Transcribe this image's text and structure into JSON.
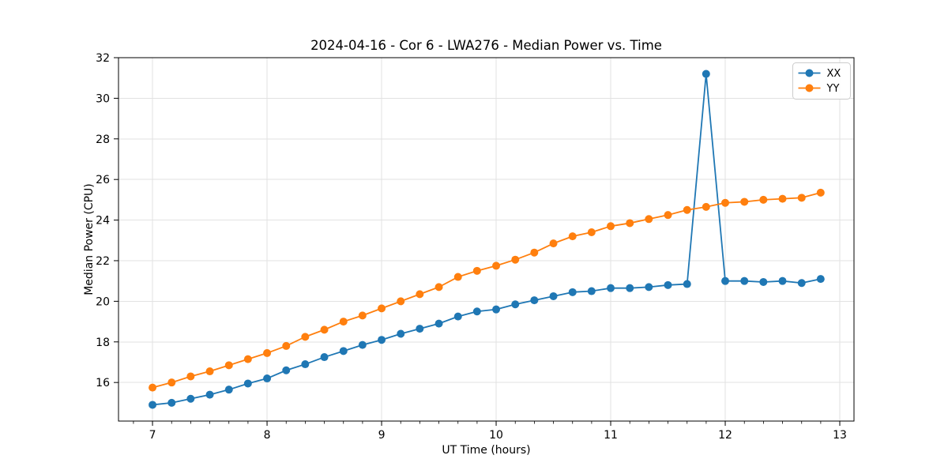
{
  "chart_data": {
    "type": "line",
    "title": "2024-04-16 - Cor 6 - LWA276 - Median Power vs. Time",
    "xlabel": "UT Time (hours)",
    "ylabel": "Median Power (CPU)",
    "xlim": [
      6.703,
      13.124
    ],
    "ylim": [
      14.1,
      32.0
    ],
    "xticks": [
      7,
      8,
      9,
      10,
      11,
      12,
      13
    ],
    "yticks": [
      16,
      18,
      20,
      22,
      24,
      26,
      28,
      30,
      32
    ],
    "x_minor_step": 0.16667,
    "grid": true,
    "legend_position": "upper right",
    "x": [
      7.0,
      7.167,
      7.333,
      7.5,
      7.667,
      7.833,
      8.0,
      8.167,
      8.333,
      8.5,
      8.667,
      8.833,
      9.0,
      9.167,
      9.333,
      9.5,
      9.667,
      9.833,
      10.0,
      10.167,
      10.333,
      10.5,
      10.667,
      10.833,
      11.0,
      11.167,
      11.333,
      11.5,
      11.667,
      11.833,
      12.0,
      12.167,
      12.333,
      12.5,
      12.667,
      12.833
    ],
    "series": [
      {
        "name": "XX",
        "color": "#1f77b4",
        "values": [
          14.9,
          15.0,
          15.2,
          15.4,
          15.65,
          15.95,
          16.2,
          16.6,
          16.9,
          17.25,
          17.55,
          17.85,
          18.1,
          18.4,
          18.65,
          18.9,
          19.25,
          19.5,
          19.6,
          19.85,
          20.05,
          20.25,
          20.45,
          20.5,
          20.65,
          20.65,
          20.7,
          20.8,
          20.85,
          31.2,
          21.0,
          21.0,
          20.95,
          21.0,
          20.9,
          21.1
        ]
      },
      {
        "name": "YY",
        "color": "#ff7f0e",
        "values": [
          15.75,
          16.0,
          16.3,
          16.55,
          16.85,
          17.15,
          17.45,
          17.8,
          18.25,
          18.6,
          19.0,
          19.3,
          19.65,
          20.0,
          20.35,
          20.7,
          21.2,
          21.5,
          21.75,
          22.05,
          22.4,
          22.85,
          23.2,
          23.4,
          23.7,
          23.85,
          24.05,
          24.25,
          24.5,
          24.65,
          24.85,
          24.9,
          25.0,
          25.05,
          25.1,
          25.35
        ]
      }
    ],
    "style": {
      "grid_color": "#e2e2e2",
      "spine_color": "#000000",
      "text_color": "#000000",
      "background": "#ffffff",
      "legend_border": "#cccccc"
    }
  }
}
